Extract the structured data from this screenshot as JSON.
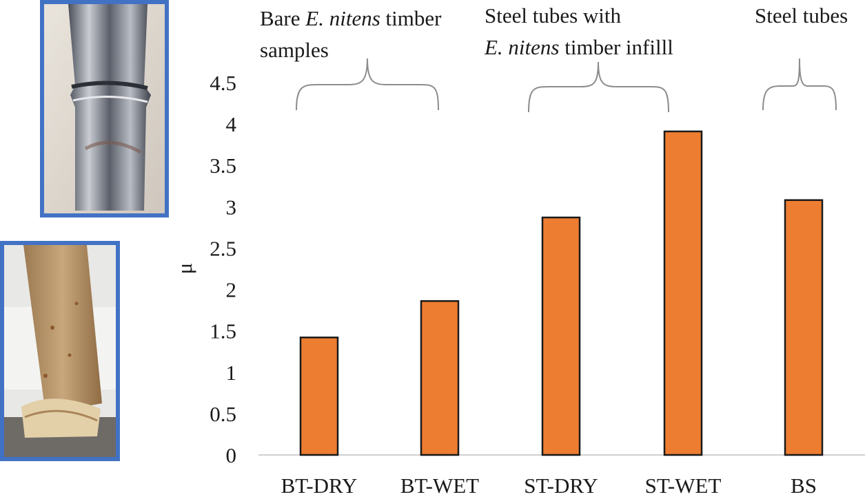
{
  "chart_data": {
    "type": "bar",
    "categories": [
      "BT-DRY",
      "BT-WET",
      "ST-DRY",
      "ST-WET",
      "BS"
    ],
    "values": [
      1.42,
      1.86,
      2.87,
      3.91,
      3.08
    ],
    "ylabel": "μ",
    "ylim": [
      0,
      4.5
    ],
    "yticks": [
      0,
      0.5,
      1,
      1.5,
      2,
      2.5,
      3,
      3.5,
      4,
      4.5
    ],
    "ytick_labels": [
      "0",
      "0.5",
      "1",
      "1.5",
      "2",
      "2.5",
      "3",
      "3.5",
      "4",
      "4.5"
    ],
    "grid": false,
    "bar_color": "#ed7d31",
    "bar_edge_color": "#1a1a1a",
    "group_annotations": [
      {
        "pre": "Bare ",
        "italic": "E. nitens",
        "post": " timber",
        "line2": "samples",
        "line2_pre": "",
        "line2_italic": "",
        "line2_post": ""
      },
      {
        "pre": "Steel tubes with",
        "italic": "",
        "post": "",
        "line2": "",
        "line2_pre": "",
        "line2_italic": "E. nitens",
        "line2_post": " timber infilll"
      },
      {
        "pre": "Steel tubes",
        "italic": "",
        "post": "",
        "line2": "",
        "line2_pre": "",
        "line2_italic": "",
        "line2_post": ""
      }
    ],
    "photos": [
      {
        "subject": "buckled steel tube"
      },
      {
        "subject": "crushed timber sample"
      }
    ]
  },
  "colors": {
    "frame": "#4272c4",
    "brace": "#8c8c8c",
    "axis": "#d0d0d0"
  }
}
